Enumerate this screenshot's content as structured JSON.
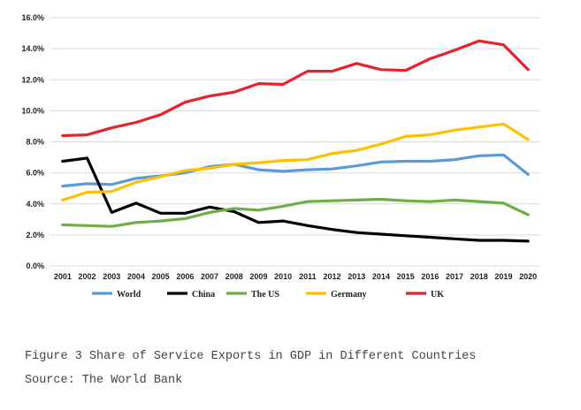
{
  "chart_data": {
    "type": "line",
    "title": "",
    "xlabel": "",
    "ylabel": "",
    "ylim": [
      0,
      16
    ],
    "y_ticks": [
      "0.0%",
      "2.0%",
      "4.0%",
      "6.0%",
      "8.0%",
      "10.0%",
      "12.0%",
      "14.0%",
      "16.0%"
    ],
    "categories": [
      "2001",
      "2002",
      "2003",
      "2004",
      "2005",
      "2006",
      "2007",
      "2008",
      "2009",
      "2010",
      "2011",
      "2012",
      "2013",
      "2014",
      "2015",
      "2016",
      "2017",
      "2018",
      "2019",
      "2020"
    ],
    "grid": true,
    "legend_position": "bottom",
    "series": [
      {
        "name": "World",
        "color": "#5b9bd5",
        "values": [
          5.15,
          5.3,
          5.25,
          5.65,
          5.8,
          6.0,
          6.4,
          6.55,
          6.2,
          6.1,
          6.2,
          6.25,
          6.45,
          6.7,
          6.75,
          6.75,
          6.85,
          7.1,
          7.15,
          5.9
        ]
      },
      {
        "name": "China",
        "color": "#000000",
        "values": [
          6.75,
          6.95,
          3.45,
          4.05,
          3.4,
          3.4,
          3.8,
          3.5,
          2.8,
          2.9,
          2.6,
          2.35,
          2.15,
          2.05,
          1.95,
          1.85,
          1.75,
          1.65,
          1.65,
          1.6
        ]
      },
      {
        "name": "The US",
        "color": "#70ad47",
        "values": [
          2.65,
          2.6,
          2.55,
          2.8,
          2.9,
          3.05,
          3.45,
          3.7,
          3.6,
          3.85,
          4.15,
          4.2,
          4.25,
          4.3,
          4.2,
          4.15,
          4.25,
          4.15,
          4.05,
          3.3
        ]
      },
      {
        "name": "Germany",
        "color": "#ffc000",
        "values": [
          4.25,
          4.75,
          4.8,
          5.4,
          5.75,
          6.15,
          6.3,
          6.55,
          6.65,
          6.8,
          6.85,
          7.25,
          7.45,
          7.85,
          8.35,
          8.45,
          8.75,
          8.95,
          9.15,
          8.15
        ]
      },
      {
        "name": "UK",
        "color": "#e3242b",
        "values": [
          8.4,
          8.45,
          8.9,
          9.25,
          9.75,
          10.55,
          10.95,
          11.2,
          11.75,
          11.7,
          12.55,
          12.55,
          13.05,
          12.65,
          12.6,
          13.35,
          13.9,
          14.5,
          14.25,
          12.65
        ]
      }
    ]
  },
  "caption": {
    "figure": "Figure 3 Share of Service Exports in GDP in Different Countries",
    "source": "Source: The World Bank"
  }
}
